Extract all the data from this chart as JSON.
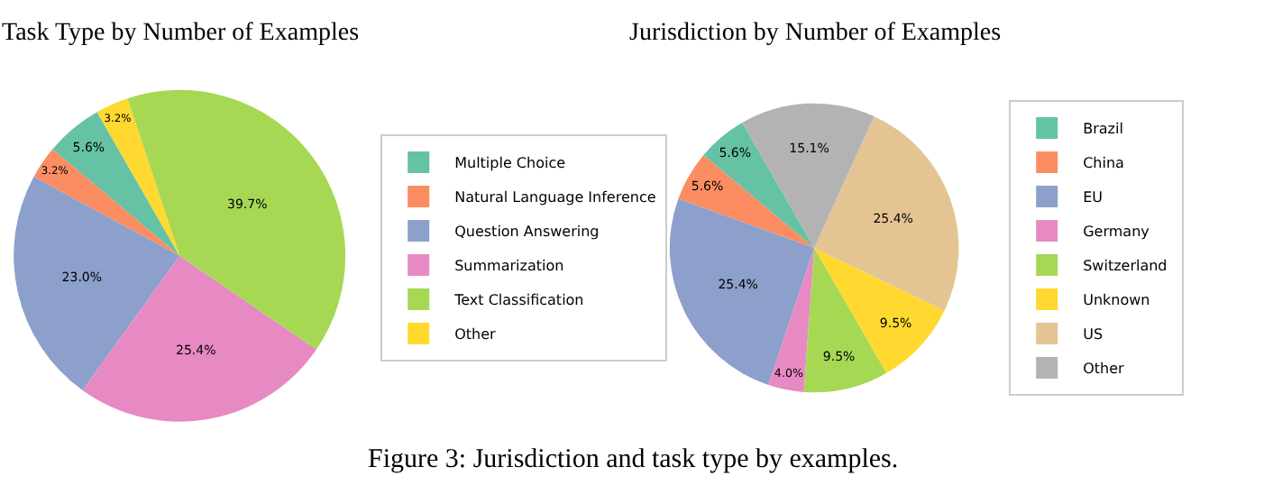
{
  "chart_data": [
    {
      "type": "pie",
      "title": "Task Type by Number of Examples",
      "categories": [
        "Multiple Choice",
        "Natural Language Inference",
        "Question Answering",
        "Summarization",
        "Text Classification",
        "Other"
      ],
      "values": [
        5.6,
        3.2,
        23.0,
        25.4,
        39.7,
        3.2
      ],
      "value_labels": [
        "5.6%",
        "3.2%",
        "23.0%",
        "25.4%",
        "39.7%",
        "3.2%"
      ],
      "colors": [
        "#66c2a5",
        "#fc8d62",
        "#8da0cb",
        "#e78ac3",
        "#a6d854",
        "#ffd92f"
      ],
      "legend": "right",
      "annotations": [
        "Figure 3: Jurisdiction and task type by examples."
      ]
    },
    {
      "type": "pie",
      "title": "Jurisdiction by Number of Examples",
      "categories": [
        "Brazil",
        "China",
        "EU",
        "Germany",
        "Switzerland",
        "Unknown",
        "US",
        "Other"
      ],
      "values": [
        5.6,
        5.6,
        25.4,
        4.0,
        9.5,
        9.5,
        25.4,
        15.1
      ],
      "value_labels": [
        "5.6%",
        "5.6%",
        "25.4%",
        "4.0%",
        "9.5%",
        "9.5%",
        "25.4%",
        "15.1%"
      ],
      "colors": [
        "#66c2a5",
        "#fc8d62",
        "#8da0cb",
        "#e78ac3",
        "#a6d854",
        "#ffd92f",
        "#e5c494",
        "#b3b3b3"
      ],
      "legend": "right"
    }
  ]
}
